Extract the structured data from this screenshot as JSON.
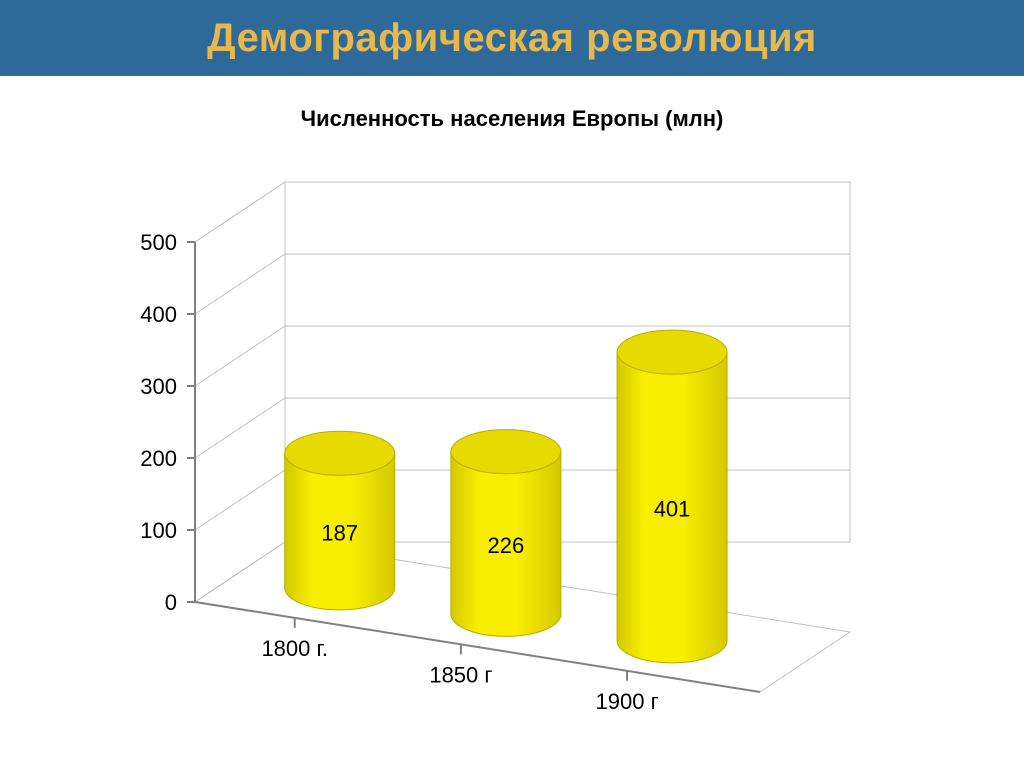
{
  "header": {
    "title": "Демографическая революция"
  },
  "chart": {
    "type": "3d-cylinder-bar",
    "title": "Численность населения Европы (млн)",
    "background_color": "#ffffff",
    "header_bg": "#2e6a99",
    "header_text_color": "#e8b84a",
    "categories": [
      "1800 г.",
      "1850 г",
      "1900 г"
    ],
    "values": [
      187,
      226,
      401
    ],
    "cylinder_color": "#f9ee00",
    "cylinder_top_color": "#e6da00",
    "cylinder_shade_color": "#d4c900",
    "axis_color": "#808080",
    "back_wall_color": "#c0c0c0",
    "floor_color": "#c0c0c0",
    "ylim": [
      0,
      500
    ],
    "ytick_step": 100,
    "y_ticks": [
      0,
      100,
      200,
      300,
      400,
      500
    ],
    "title_fontsize": 22,
    "label_fontsize": 22,
    "header_fontsize": 40
  }
}
